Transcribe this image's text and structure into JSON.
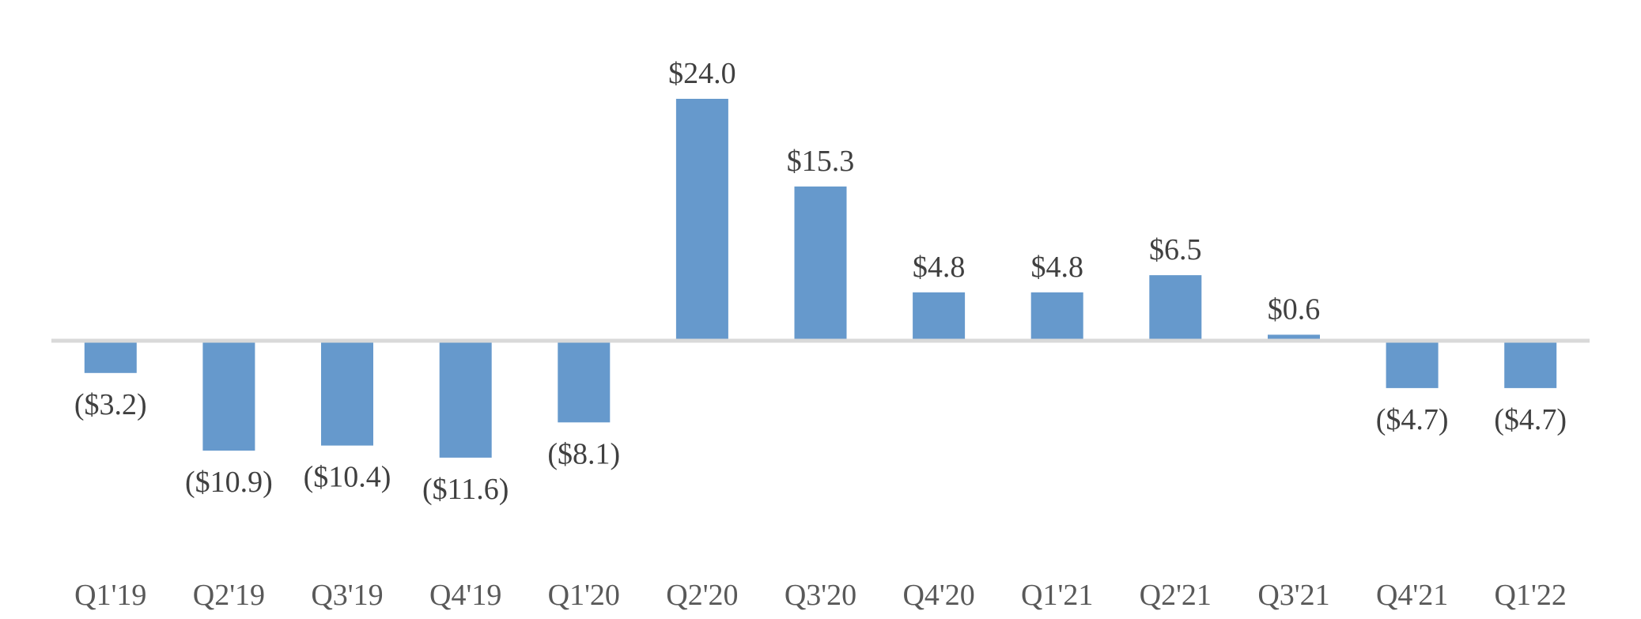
{
  "chart_data": {
    "type": "bar",
    "categories": [
      "Q1'19",
      "Q2'19",
      "Q3'19",
      "Q4'19",
      "Q1'20",
      "Q2'20",
      "Q3'20",
      "Q4'20",
      "Q1'21",
      "Q2'21",
      "Q3'21",
      "Q4'21",
      "Q1'22"
    ],
    "values": [
      -3.2,
      -10.9,
      -10.4,
      -11.6,
      -8.1,
      24.0,
      15.3,
      4.8,
      4.8,
      6.5,
      0.6,
      -4.7,
      -4.7
    ],
    "data_labels": [
      "($3.2)",
      "($10.9)",
      "($10.4)",
      "($11.6)",
      "($8.1)",
      "$24.0",
      "$15.3",
      "$4.8",
      "$4.8",
      "$6.5",
      "$0.6",
      "($4.7)",
      "($4.7)"
    ],
    "title": "",
    "xlabel": "",
    "ylabel": "",
    "ylim": [
      -20,
      28
    ],
    "grid": false,
    "legend": "none",
    "colors": {
      "bar": "#6699cc",
      "zero_line": "#d9d9d9"
    }
  }
}
